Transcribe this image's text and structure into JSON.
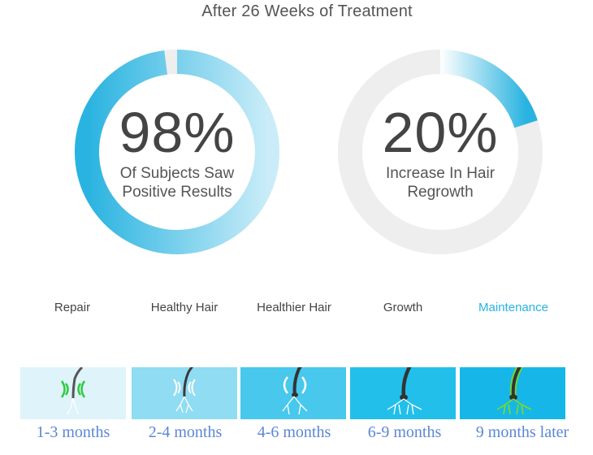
{
  "title": "After 26 Weeks of Treatment",
  "chart_data": [
    {
      "type": "pie",
      "value": 98,
      "unit": "%",
      "label": "98%",
      "caption_line1": "Of Subjects Saw",
      "caption_line2": "Positive Results",
      "color": "#29b3e0",
      "track_color": "#eeeeee"
    },
    {
      "type": "pie",
      "value": 20,
      "unit": "%",
      "label": "20%",
      "caption_line1": "Increase In Hair",
      "caption_line2": "Regrowth",
      "color": "#29b3e0",
      "track_color": "#eeeeee"
    }
  ],
  "stages": [
    {
      "name": "Repair",
      "period": "1-3 months",
      "icon": "hair-follicle-repair-icon"
    },
    {
      "name": "Healthy Hair",
      "period": "2-4 months",
      "icon": "hair-follicle-healthy-icon"
    },
    {
      "name": "Healthier Hair",
      "period": "4-6 months",
      "icon": "hair-follicle-healthier-icon"
    },
    {
      "name": "Growth",
      "period": "6-9 months",
      "icon": "hair-follicle-growth-icon"
    },
    {
      "name": "Maintenance",
      "period": "9 months later",
      "icon": "hair-follicle-maintenance-icon",
      "highlight": true
    }
  ],
  "colors": {
    "accent": "#29b3e0",
    "highlight_label": "#29b3e0",
    "months_text": "#5b87d6",
    "repair_glow": "#2ecc40",
    "maintenance_glow": "#7ddc1f"
  }
}
